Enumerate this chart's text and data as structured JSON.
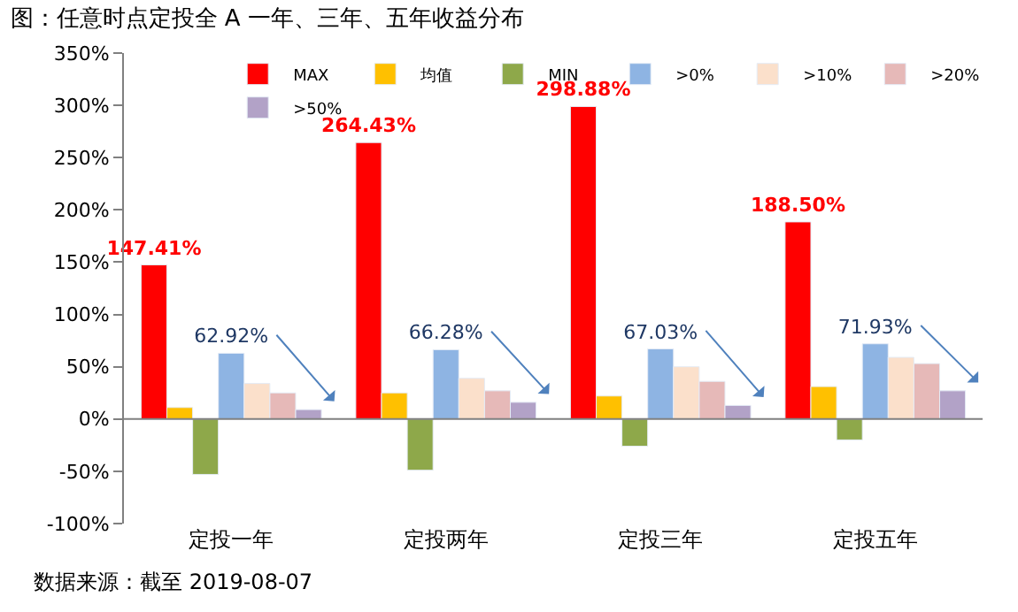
{
  "chart_data": {
    "type": "bar",
    "title": "图：任意时点定投全 A 一年、三年、五年收益分布",
    "categories": [
      "定投一年",
      "定投两年",
      "定投三年",
      "定投五年"
    ],
    "series": [
      {
        "name": "MAX",
        "color": "#ff0000",
        "values": [
          147.41,
          264.43,
          298.88,
          188.5
        ],
        "value_labels": [
          "147.41%",
          "264.43%",
          "298.88%",
          "188.50%"
        ]
      },
      {
        "name": "均值",
        "color": "#ffc000",
        "values": [
          11,
          25,
          22,
          31
        ]
      },
      {
        "name": "MIN",
        "color": "#8ea84a",
        "values": [
          -53,
          -49,
          -26,
          -20
        ]
      },
      {
        "name": ">0%",
        "color": "#8eb4e3",
        "values": [
          62.92,
          66.28,
          67.03,
          71.93
        ],
        "value_labels": [
          "62.92%",
          "66.28%",
          "67.03%",
          "71.93%"
        ]
      },
      {
        "name": ">10%",
        "color": "#fbe0cb",
        "values": [
          34,
          39,
          50,
          59
        ]
      },
      {
        "name": ">20%",
        "color": "#e6b9b8",
        "values": [
          25,
          27,
          36,
          53
        ]
      },
      {
        "name": ">50%",
        "color": "#b2a2c7",
        "values": [
          9,
          16,
          13,
          27
        ]
      }
    ],
    "ylim": [
      -100,
      350
    ],
    "yticks": [
      {
        "value": -100,
        "label": "-100%"
      },
      {
        "value": -50,
        "label": "-50%"
      },
      {
        "value": 0,
        "label": "0%"
      },
      {
        "value": 50,
        "label": "50%"
      },
      {
        "value": 100,
        "label": "100%"
      },
      {
        "value": 150,
        "label": "150%"
      },
      {
        "value": 200,
        "label": "200%"
      },
      {
        "value": 250,
        "label": "250%"
      },
      {
        "value": 300,
        "label": "300%"
      },
      {
        "value": 350,
        "label": "350%"
      }
    ],
    "legend": "top",
    "ref_lines": [
      {
        "axis": "y",
        "value": 0,
        "color": "#808080"
      }
    ],
    "annotations": [
      "数据来源：截至 2019-08-07"
    ]
  }
}
